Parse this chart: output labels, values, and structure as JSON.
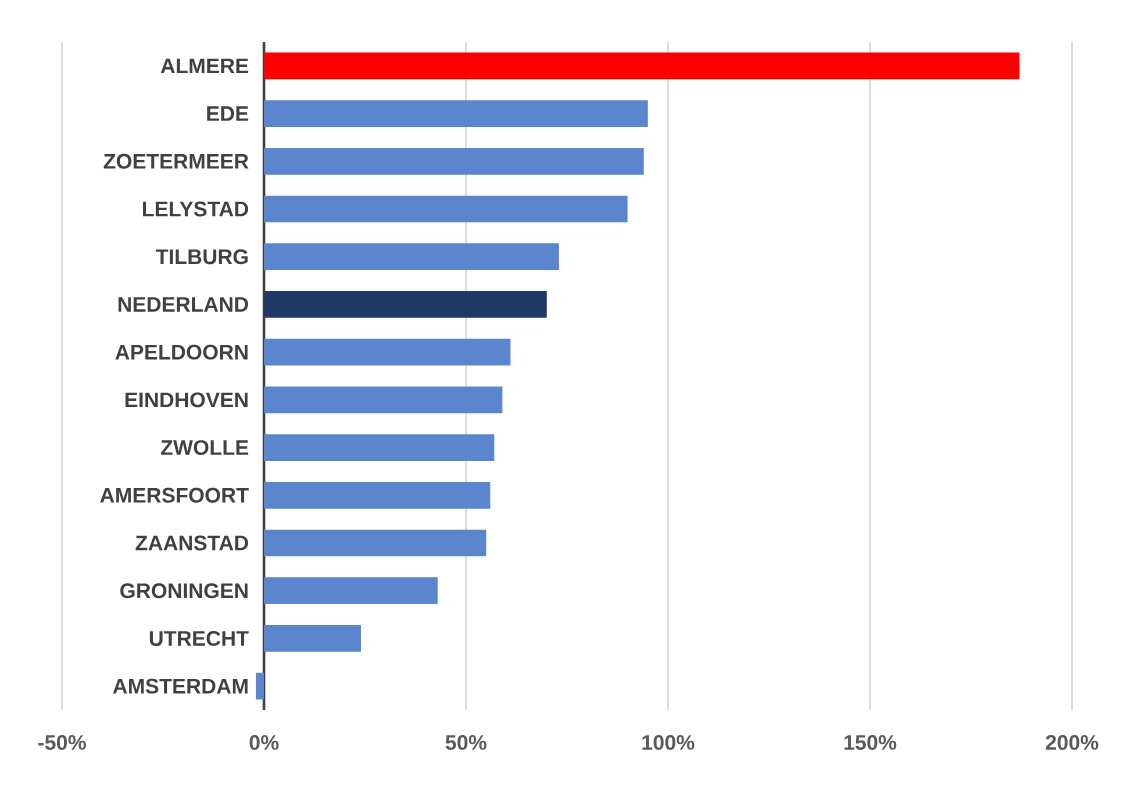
{
  "chart_data": {
    "type": "bar",
    "orientation": "horizontal",
    "categories": [
      "ALMERE",
      "EDE",
      "ZOETERMEER",
      "LELYSTAD",
      "TILBURG",
      "NEDERLAND",
      "APELDOORN",
      "EINDHOVEN",
      "ZWOLLE",
      "AMERSFOORT",
      "ZAANSTAD",
      "GRONINGEN",
      "UTRECHT",
      "AMSTERDAM"
    ],
    "values": [
      187,
      95,
      94,
      90,
      73,
      70,
      61,
      59,
      57,
      56,
      55,
      43,
      24,
      -2
    ],
    "colors": [
      "#ff0000",
      "#5b85cd",
      "#5b85cd",
      "#5b85cd",
      "#5b85cd",
      "#203864",
      "#5b85cd",
      "#5b85cd",
      "#5b85cd",
      "#5b85cd",
      "#5b85cd",
      "#5b85cd",
      "#5b85cd",
      "#5b85cd"
    ],
    "xlim": [
      -50,
      200
    ],
    "xticks": [
      {
        "value": -50,
        "label": "-50%"
      },
      {
        "value": 0,
        "label": "0%"
      },
      {
        "value": 50,
        "label": "50%"
      },
      {
        "value": 100,
        "label": "100%"
      },
      {
        "value": 150,
        "label": "150%"
      },
      {
        "value": 200,
        "label": "200%"
      }
    ],
    "grid": "x"
  }
}
